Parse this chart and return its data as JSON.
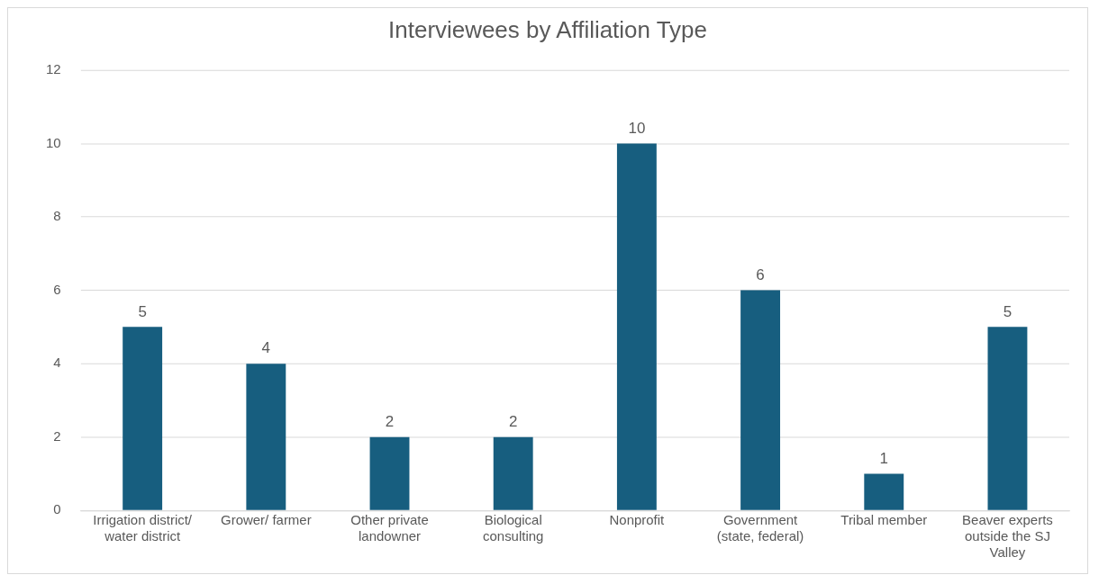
{
  "chart_data": {
    "type": "bar",
    "title": "Interviewees by Affiliation Type",
    "categories": [
      "Irrigation district/ water district",
      "Grower/ farmer",
      "Other private landowner",
      "Biological consulting",
      "Nonprofit",
      "Government (state, federal)",
      "Tribal member",
      "Beaver experts outside the SJ Valley"
    ],
    "values": [
      5,
      4,
      2,
      2,
      10,
      6,
      1,
      5
    ],
    "color": "#175e7f",
    "ylim": [
      0,
      12
    ],
    "yticks": [
      0,
      2,
      4,
      6,
      8,
      10,
      12
    ],
    "grid": "y",
    "data_labels": true,
    "legend": false
  }
}
